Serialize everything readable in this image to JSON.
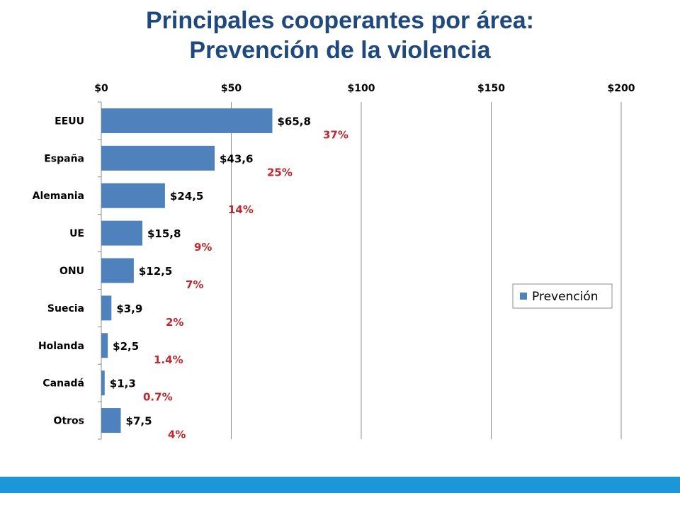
{
  "title": {
    "line1": "Principales cooperantes por área:",
    "line2": "Prevención de la violencia"
  },
  "colors": {
    "bar": "#4f81bd",
    "title": "#1f497d",
    "percent": "#c0282d",
    "footer": "#1b97d8"
  },
  "chart_data": {
    "type": "bar",
    "orientation": "horizontal",
    "categories": [
      "EEUU",
      "España",
      "Alemania",
      "UE",
      "ONU",
      "Suecia",
      "Holanda",
      "Canadá",
      "Otros"
    ],
    "series": [
      {
        "name": "Prevención",
        "values": [
          65.8,
          43.6,
          24.5,
          15.8,
          12.5,
          3.9,
          2.5,
          1.3,
          7.5
        ],
        "value_labels": [
          "$65,8",
          "$43,6",
          "$24,5",
          "$15,8",
          "$12,5",
          "$3,9",
          "$2,5",
          "$1,3",
          "$7,5"
        ]
      }
    ],
    "percent_labels": [
      "37%",
      "25%",
      "14%",
      "9%",
      "7%",
      "2%",
      "1.4%",
      "0.7%",
      "4%"
    ],
    "xlim": [
      0,
      200
    ],
    "xticks": [
      0,
      50,
      100,
      150,
      200
    ],
    "xtick_labels": [
      "$0",
      "$50",
      "$100",
      "$150",
      "$200"
    ],
    "x_axis_position": "top",
    "grid": "vertical",
    "legend_position": "right"
  }
}
